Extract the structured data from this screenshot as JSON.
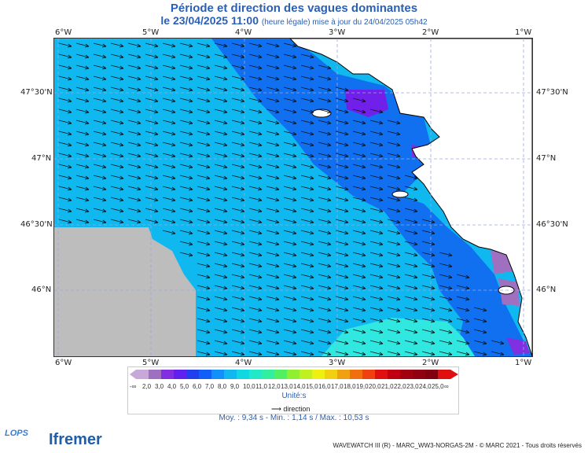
{
  "header": {
    "title": "Période et direction des vagues dominantes",
    "date_line": "le 23/04/2025 11:00",
    "update_line": "(heure légale) mise à jour du 24/04/2025 05h42"
  },
  "axes": {
    "lon_labels": [
      "6°W",
      "5°W",
      "4°W",
      "3°W",
      "2°W",
      "1°W"
    ],
    "lat_labels": [
      "47°30'N",
      "47°N",
      "46°30'N",
      "46°N"
    ]
  },
  "legend": {
    "labels": [
      "-∞",
      "2,0",
      "3,0",
      "4,0",
      "5,0",
      "6,0",
      "7,0",
      "8,0",
      "9,0",
      "10,0",
      "11,0",
      "12,0",
      "13,0",
      "14,0",
      "15,0",
      "16,0",
      "17,0",
      "18,0",
      "19,0",
      "20,0",
      "21,0",
      "22,0",
      "23,0",
      "24,0",
      "25,0",
      "∞"
    ],
    "colors": [
      "#c8a8d8",
      "#a070c0",
      "#8030e0",
      "#6020f0",
      "#2040f0",
      "#1060f8",
      "#1090f8",
      "#10b8f0",
      "#10d8e0",
      "#20e8c8",
      "#30f0a0",
      "#50f060",
      "#90f030",
      "#c0f020",
      "#f0f010",
      "#f0d010",
      "#f0a010",
      "#f07010",
      "#f04010",
      "#e01010",
      "#c00010",
      "#a00010",
      "#900010",
      "#800010",
      "#e01010"
    ],
    "units": "Unité:s",
    "direction_label": "direction"
  },
  "stats": "Moy. : 9,34 s   -   Min. : 1,14 s / Max. : 10,53 s",
  "footer": "WAVEWATCH III (R) - MARC_WW3-NORGAS-2M - © MARC 2021 - Tous droits réservés",
  "logos": {
    "lops": "LOPS",
    "ifremer": "Ifremer"
  },
  "colors": {
    "sea": "#10b8f0",
    "coast_sea": "#1070f0",
    "land": "#ffffff",
    "nodata": "#bdbdbd",
    "near": "#30e8e0"
  }
}
